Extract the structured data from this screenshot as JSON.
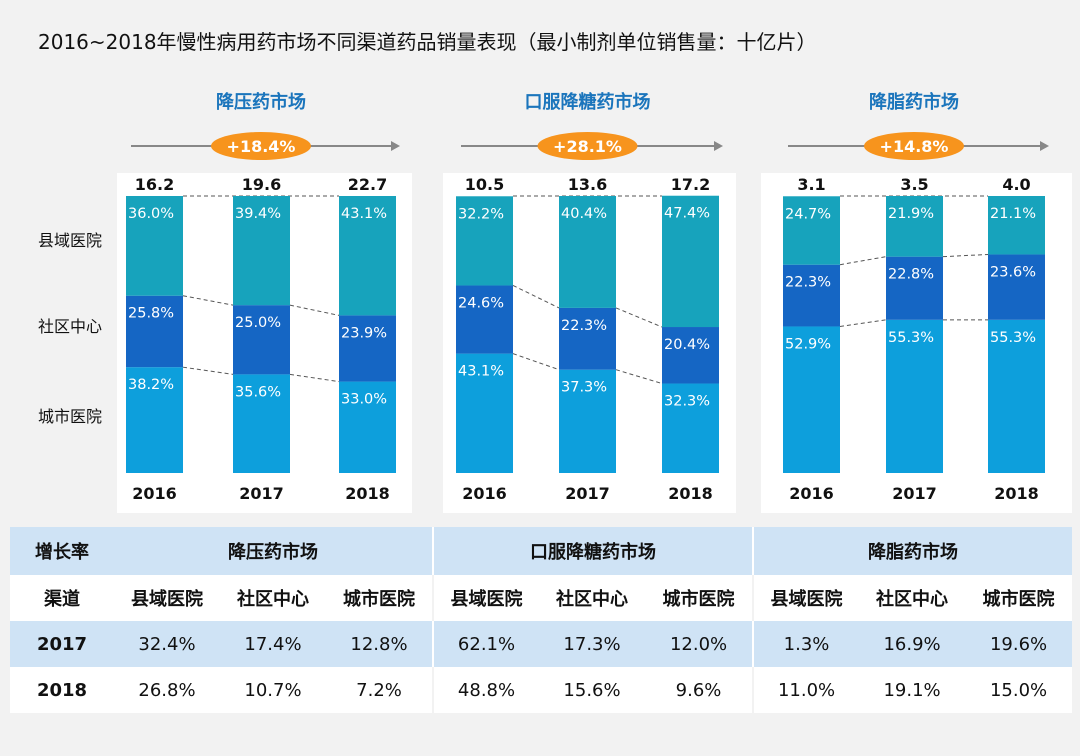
{
  "title": "2016~2018年慢性病用药市场不同渠道药品销量表现（最小制剂单位销售量：十亿片）",
  "channel_labels": [
    "县域医院",
    "社区中心",
    "城市医院"
  ],
  "chart_data": [
    {
      "type": "bar",
      "title": "降压药市场",
      "growth": "+18.4%",
      "categories": [
        "2016",
        "2017",
        "2018"
      ],
      "totals": [
        "16.2",
        "19.6",
        "22.7"
      ],
      "series": [
        {
          "name": "城市医院",
          "values": [
            38.2,
            35.6,
            33.0
          ],
          "labels": [
            "38.2%",
            "35.6%",
            "33.0%"
          ]
        },
        {
          "name": "社区中心",
          "values": [
            25.8,
            25.0,
            23.9
          ],
          "labels": [
            "25.8%",
            "25.0%",
            "23.9%"
          ]
        },
        {
          "name": "县域医院",
          "values": [
            36.0,
            39.4,
            43.1
          ],
          "labels": [
            "36.0%",
            "39.4%",
            "43.1%"
          ]
        }
      ]
    },
    {
      "type": "bar",
      "title": "口服降糖药市场",
      "growth": "+28.1%",
      "categories": [
        "2016",
        "2017",
        "2018"
      ],
      "totals": [
        "10.5",
        "13.6",
        "17.2"
      ],
      "series": [
        {
          "name": "城市医院",
          "values": [
            43.1,
            37.3,
            32.3
          ],
          "labels": [
            "43.1%",
            "37.3%",
            "32.3%"
          ]
        },
        {
          "name": "社区中心",
          "values": [
            24.6,
            22.3,
            20.4
          ],
          "labels": [
            "24.6%",
            "22.3%",
            "20.4%"
          ]
        },
        {
          "name": "县域医院",
          "values": [
            32.2,
            40.4,
            47.4
          ],
          "labels": [
            "32.2%",
            "40.4%",
            "47.4%"
          ]
        }
      ]
    },
    {
      "type": "bar",
      "title": "降脂药市场",
      "growth": "+14.8%",
      "categories": [
        "2016",
        "2017",
        "2018"
      ],
      "totals": [
        "3.1",
        "3.5",
        "4.0"
      ],
      "series": [
        {
          "name": "城市医院",
          "values": [
            52.9,
            55.3,
            55.3
          ],
          "labels": [
            "52.9%",
            "55.3%",
            "55.3%"
          ]
        },
        {
          "name": "社区中心",
          "values": [
            22.3,
            22.8,
            23.6
          ],
          "labels": [
            "22.3%",
            "22.8%",
            "23.6%"
          ]
        },
        {
          "name": "县域医院",
          "values": [
            24.7,
            21.9,
            21.1
          ],
          "labels": [
            "24.7%",
            "21.9%",
            "21.1%"
          ]
        }
      ]
    }
  ],
  "colors": {
    "city": "#0d9fdc",
    "community": "#1566c4",
    "county": "#17a3bc",
    "pill": "#f7941d",
    "title": "#1b75bc",
    "arrow": "#888888"
  },
  "table": {
    "growth_label": "增长率",
    "channel_label": "渠道",
    "markets": [
      "降压药市场",
      "口服降糖药市场",
      "降脂药市场"
    ],
    "channels": [
      "县域医院",
      "社区中心",
      "城市医院",
      "县域医院",
      "社区中心",
      "城市医院",
      "县域医院",
      "社区中心",
      "城市医院"
    ],
    "rows": [
      {
        "year": "2017",
        "values": [
          "32.4%",
          "17.4%",
          "12.8%",
          "62.1%",
          "17.3%",
          "12.0%",
          "1.3%",
          "16.9%",
          "19.6%"
        ]
      },
      {
        "year": "2018",
        "values": [
          "26.8%",
          "10.7%",
          "7.2%",
          "48.8%",
          "15.6%",
          "9.6%",
          "11.0%",
          "19.1%",
          "15.0%"
        ]
      }
    ]
  }
}
